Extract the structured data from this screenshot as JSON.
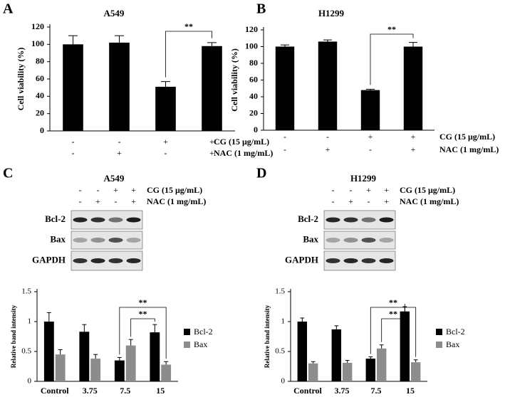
{
  "chart_data": [
    {
      "type": "bar",
      "panel": "A",
      "title": "A549",
      "ylabel": "Cell viability (%)",
      "categories": [
        null,
        null,
        null,
        null
      ],
      "values": [
        100,
        102,
        51,
        98
      ],
      "errors": [
        10,
        8,
        6,
        4
      ],
      "color": "#000000",
      "ylim": [
        0,
        120
      ],
      "yticks": [
        0,
        20,
        40,
        60,
        80,
        100,
        120
      ],
      "annotations": [
        "**"
      ],
      "conditions": [
        {
          "label": "CG (15 μg/mL)",
          "values": [
            "-",
            "-",
            "+",
            "+"
          ]
        },
        {
          "label": "NAC (1 mg/mL)",
          "values": [
            "-",
            "+",
            "-",
            "+"
          ]
        }
      ]
    },
    {
      "type": "bar",
      "panel": "B",
      "title": "H1299",
      "ylabel": "Cell viability (%)",
      "categories": [
        null,
        null,
        null,
        null
      ],
      "values": [
        100,
        106,
        48,
        100
      ],
      "errors": [
        2,
        2,
        1,
        5
      ],
      "color": "#000000",
      "ylim": [
        0,
        120
      ],
      "yticks": [
        0,
        20,
        40,
        60,
        80,
        100,
        120
      ],
      "annotations": [
        "**"
      ],
      "conditions": [
        {
          "label": "CG (15 μg/mL)",
          "values": [
            "-",
            "-",
            "+",
            "+"
          ]
        },
        {
          "label": "NAC (1 mg/mL)",
          "values": [
            "-",
            "+",
            "-",
            "+"
          ]
        }
      ]
    },
    {
      "type": "grouped-bar",
      "panel": "C",
      "title": "A549",
      "ylabel": "Relative band intensity",
      "blot_labels": [
        "Bcl-2",
        "Bax",
        "GAPDH"
      ],
      "conditions": [
        {
          "label": "CG (15 μg/mL)",
          "values": [
            "-",
            "-",
            "+",
            "+"
          ]
        },
        {
          "label": "NAC (1 mg/mL)",
          "values": [
            "-",
            "+",
            "-",
            "+"
          ]
        }
      ],
      "categories": [
        "Control",
        "3.75",
        "7.5",
        "15"
      ],
      "series": [
        {
          "name": "Bcl-2",
          "color": "#000000",
          "values": [
            1.0,
            0.83,
            0.35,
            0.82
          ],
          "errors": [
            0.15,
            0.12,
            0.05,
            0.13
          ]
        },
        {
          "name": "Bax",
          "color": "#8c8c8c",
          "values": [
            0.45,
            0.38,
            0.6,
            0.28
          ],
          "errors": [
            0.08,
            0.07,
            0.1,
            0.05
          ]
        }
      ],
      "ylim": [
        0,
        1.5
      ],
      "yticks": [
        0,
        0.5,
        1,
        1.5
      ],
      "annotations": [
        "**",
        "**"
      ]
    },
    {
      "type": "grouped-bar",
      "panel": "D",
      "title": "H1299",
      "ylabel": "Relative band intensity",
      "blot_labels": [
        "Bcl-2",
        "Bax",
        "GAPDH"
      ],
      "conditions": [
        {
          "label": "CG (15 μg/mL)",
          "values": [
            "-",
            "-",
            "+",
            "+"
          ]
        },
        {
          "label": "NAC (1 mg/mL)",
          "values": [
            "-",
            "+",
            "-",
            "+"
          ]
        }
      ],
      "categories": [
        "Control",
        "3.75",
        "7.5",
        "15"
      ],
      "series": [
        {
          "name": "Bcl-2",
          "color": "#000000",
          "values": [
            1.0,
            0.87,
            0.38,
            1.17
          ],
          "errors": [
            0.06,
            0.06,
            0.03,
            0.08
          ]
        },
        {
          "name": "Bax",
          "color": "#8c8c8c",
          "values": [
            0.3,
            0.31,
            0.55,
            0.32
          ],
          "errors": [
            0.03,
            0.04,
            0.06,
            0.04
          ]
        }
      ],
      "ylim": [
        0,
        1.5
      ],
      "yticks": [
        0,
        0.5,
        1,
        1.5
      ],
      "annotations": [
        "**",
        "**"
      ]
    }
  ]
}
